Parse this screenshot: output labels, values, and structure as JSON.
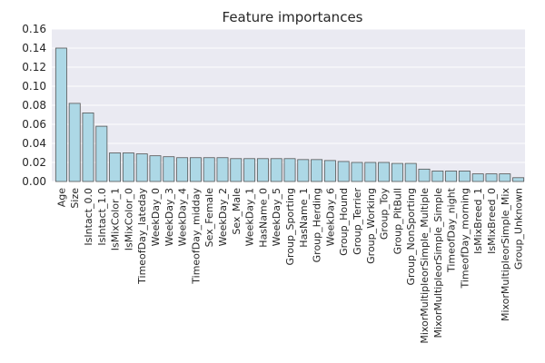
{
  "chart_data": {
    "type": "bar",
    "title": "Feature importances",
    "xlabel": "",
    "ylabel": "",
    "ylim": [
      0,
      0.16
    ],
    "yticks": [
      "0.00",
      "0.02",
      "0.04",
      "0.06",
      "0.08",
      "0.10",
      "0.12",
      "0.14",
      "0.16"
    ],
    "grid": true,
    "bar_color": "#add8e6",
    "bar_edge_color": "#555555",
    "background_color": "#eaeaf2",
    "categories": [
      "Age",
      "Size",
      "IsIntact_0.0",
      "IsIntact_1.0",
      "IsMixColor_1",
      "IsMixColor_0",
      "TimeofDay_lateday",
      "WeekDay_0",
      "WeekDay_3",
      "WeekDay_4",
      "TimeofDay_midday",
      "Sex_Female",
      "WeekDay_2",
      "Sex_Male",
      "WeekDay_1",
      "HasName_0",
      "WeekDay_5",
      "Group_Sporting",
      "HasName_1",
      "Group_Herding",
      "WeekDay_6",
      "Group_Hound",
      "Group_Terrier",
      "Group_Working",
      "Group_Toy",
      "Group_PitBull",
      "Group_NonSporting",
      "MixorMultipleorSimple_Multiple",
      "MixorMultipleorSimple_Simple",
      "TimeofDay_night",
      "TimeofDay_morning",
      "IsMixBreed_1",
      "IsMixBreed_0",
      "MixorMultipleorSimple_Mix",
      "Group_Unknown"
    ],
    "values": [
      0.14,
      0.082,
      0.072,
      0.058,
      0.03,
      0.03,
      0.029,
      0.027,
      0.026,
      0.025,
      0.025,
      0.025,
      0.025,
      0.024,
      0.024,
      0.024,
      0.024,
      0.024,
      0.023,
      0.023,
      0.022,
      0.021,
      0.02,
      0.02,
      0.02,
      0.019,
      0.019,
      0.013,
      0.011,
      0.011,
      0.011,
      0.008,
      0.008,
      0.008,
      0.004
    ]
  }
}
